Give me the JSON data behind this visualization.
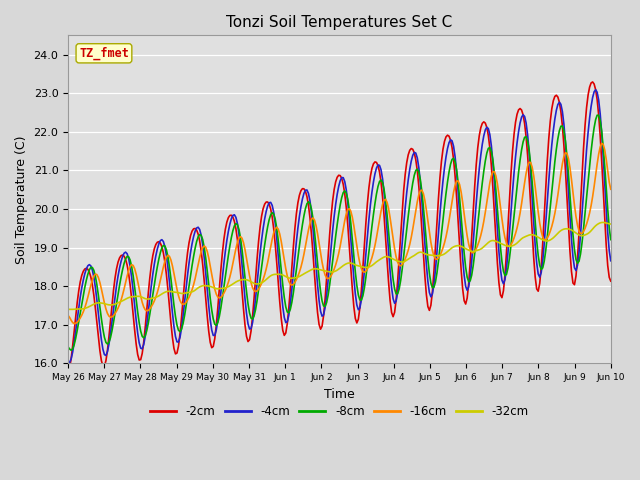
{
  "title": "Tonzi Soil Temperatures Set C",
  "xlabel": "Time",
  "ylabel": "Soil Temperature (C)",
  "ylim": [
    16.0,
    24.5
  ],
  "yticks": [
    16.0,
    17.0,
    18.0,
    19.0,
    20.0,
    21.0,
    22.0,
    23.0,
    24.0
  ],
  "fig_bg_color": "#d8d8d8",
  "plot_bg_color": "#e0e0e0",
  "annotation_label": "TZ_fmet",
  "annotation_color": "#cc0000",
  "annotation_bg": "#ffffcc",
  "annotation_border": "#aaaa00",
  "series_colors": {
    "-2cm": "#dd0000",
    "-4cm": "#2222cc",
    "-8cm": "#00aa00",
    "-16cm": "#ff8800",
    "-32cm": "#cccc00"
  },
  "legend_colors": [
    "#dd0000",
    "#2222cc",
    "#00aa00",
    "#ff8800",
    "#cccc00"
  ],
  "legend_labels": [
    "-2cm",
    "-4cm",
    "-8cm",
    "-16cm",
    "-32cm"
  ],
  "xticklabels": [
    "May 26",
    "May 27",
    "May 28",
    "May 29",
    "May 30",
    "May 31",
    "Jun 1",
    "Jun 2",
    "Jun 3",
    "Jun 4",
    "Jun 5",
    "Jun 6",
    "Jun 7",
    "Jun 8",
    "Jun 9",
    "Jun 10"
  ],
  "lw": 1.2
}
